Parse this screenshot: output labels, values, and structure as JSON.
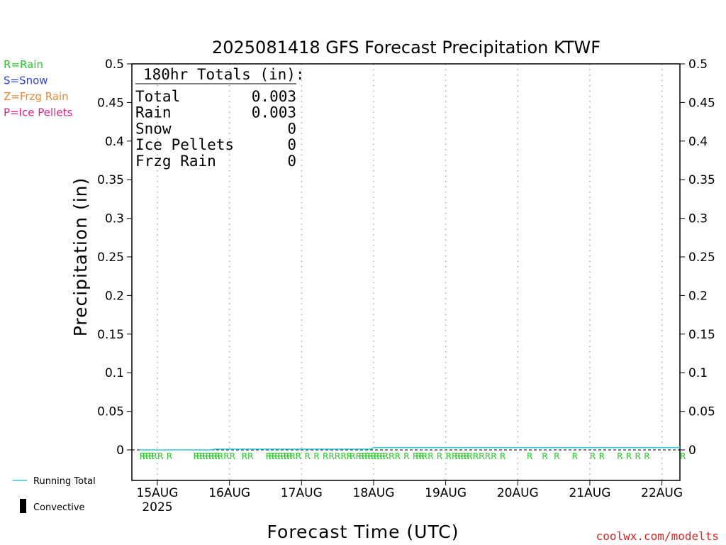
{
  "chart_data": {
    "type": "line",
    "title": "2025081418 GFS Forecast Precipitation KTWF",
    "xlabel": "Forecast Time (UTC)",
    "ylabel": "Precipitation (in)",
    "ylim": [
      0,
      0.5
    ],
    "yticks": [
      "0",
      "0.05",
      "0.1",
      "0.15",
      "0.2",
      "0.25",
      "0.3",
      "0.35",
      "0.4",
      "0.45",
      "0.5"
    ],
    "xlim_hours": [
      -2.5,
      180
    ],
    "xticks": [
      {
        "label": "15AUG",
        "sublabel": "2025",
        "hour": 6
      },
      {
        "label": "16AUG",
        "hour": 30
      },
      {
        "label": "17AUG",
        "hour": 54
      },
      {
        "label": "18AUG",
        "hour": 78
      },
      {
        "label": "19AUG",
        "hour": 102
      },
      {
        "label": "20AUG",
        "hour": 126
      },
      {
        "label": "21AUG",
        "hour": 150
      },
      {
        "label": "22AUG",
        "hour": 174
      }
    ],
    "grid": "vertical-dotted",
    "series": [
      {
        "name": "Running Total",
        "color": "#30c8d8",
        "x": [
          0,
          24,
          25,
          77,
          78,
          180
        ],
        "y": [
          0,
          0,
          0.001,
          0.001,
          0.003,
          0.003
        ]
      }
    ],
    "convective": [],
    "precip_type_markers": {
      "symbol": "R",
      "hours": [
        0,
        1,
        2,
        3,
        4,
        6,
        9,
        18,
        19,
        20,
        21,
        22,
        23,
        24,
        25,
        26,
        28,
        30,
        34,
        36,
        42,
        43,
        44,
        45,
        46,
        47,
        48,
        49,
        50,
        52,
        55,
        58,
        61,
        63,
        65,
        67,
        69,
        70,
        72,
        73,
        74,
        75,
        76,
        77,
        78,
        79,
        80,
        81,
        83,
        85,
        88,
        91,
        92,
        93,
        94,
        96,
        99,
        102,
        104,
        105,
        106,
        107,
        108,
        109,
        111,
        113,
        115,
        117,
        120,
        129,
        134,
        138,
        144,
        150,
        153,
        159,
        162,
        165,
        168,
        180,
        189
      ]
    }
  },
  "legend_types": [
    {
      "text": "R=Rain",
      "color": "#22cc22"
    },
    {
      "text": "S=Snow",
      "color": "#3344dd"
    },
    {
      "text": "Z=Frzg Rain",
      "color": "#ee8833"
    },
    {
      "text": "P=Ice Pellets",
      "color": "#dd2288"
    }
  ],
  "totals": {
    "header": "180hr Totals (in):",
    "rows": [
      {
        "label": "Total",
        "value": "0.003"
      },
      {
        "label": "Rain",
        "value": "0.003"
      },
      {
        "label": "Snow",
        "value": "0"
      },
      {
        "label": "Ice Pellets",
        "value": "0"
      },
      {
        "label": "Frzg Rain",
        "value": "0"
      }
    ]
  },
  "bottom_legend": {
    "running_total": "Running Total",
    "convective": "Convective"
  },
  "credit": "coolwx.com/modelts",
  "colors": {
    "running_total": "#30c8d8",
    "rain": "#22cc22",
    "credit": "#dd2222"
  }
}
